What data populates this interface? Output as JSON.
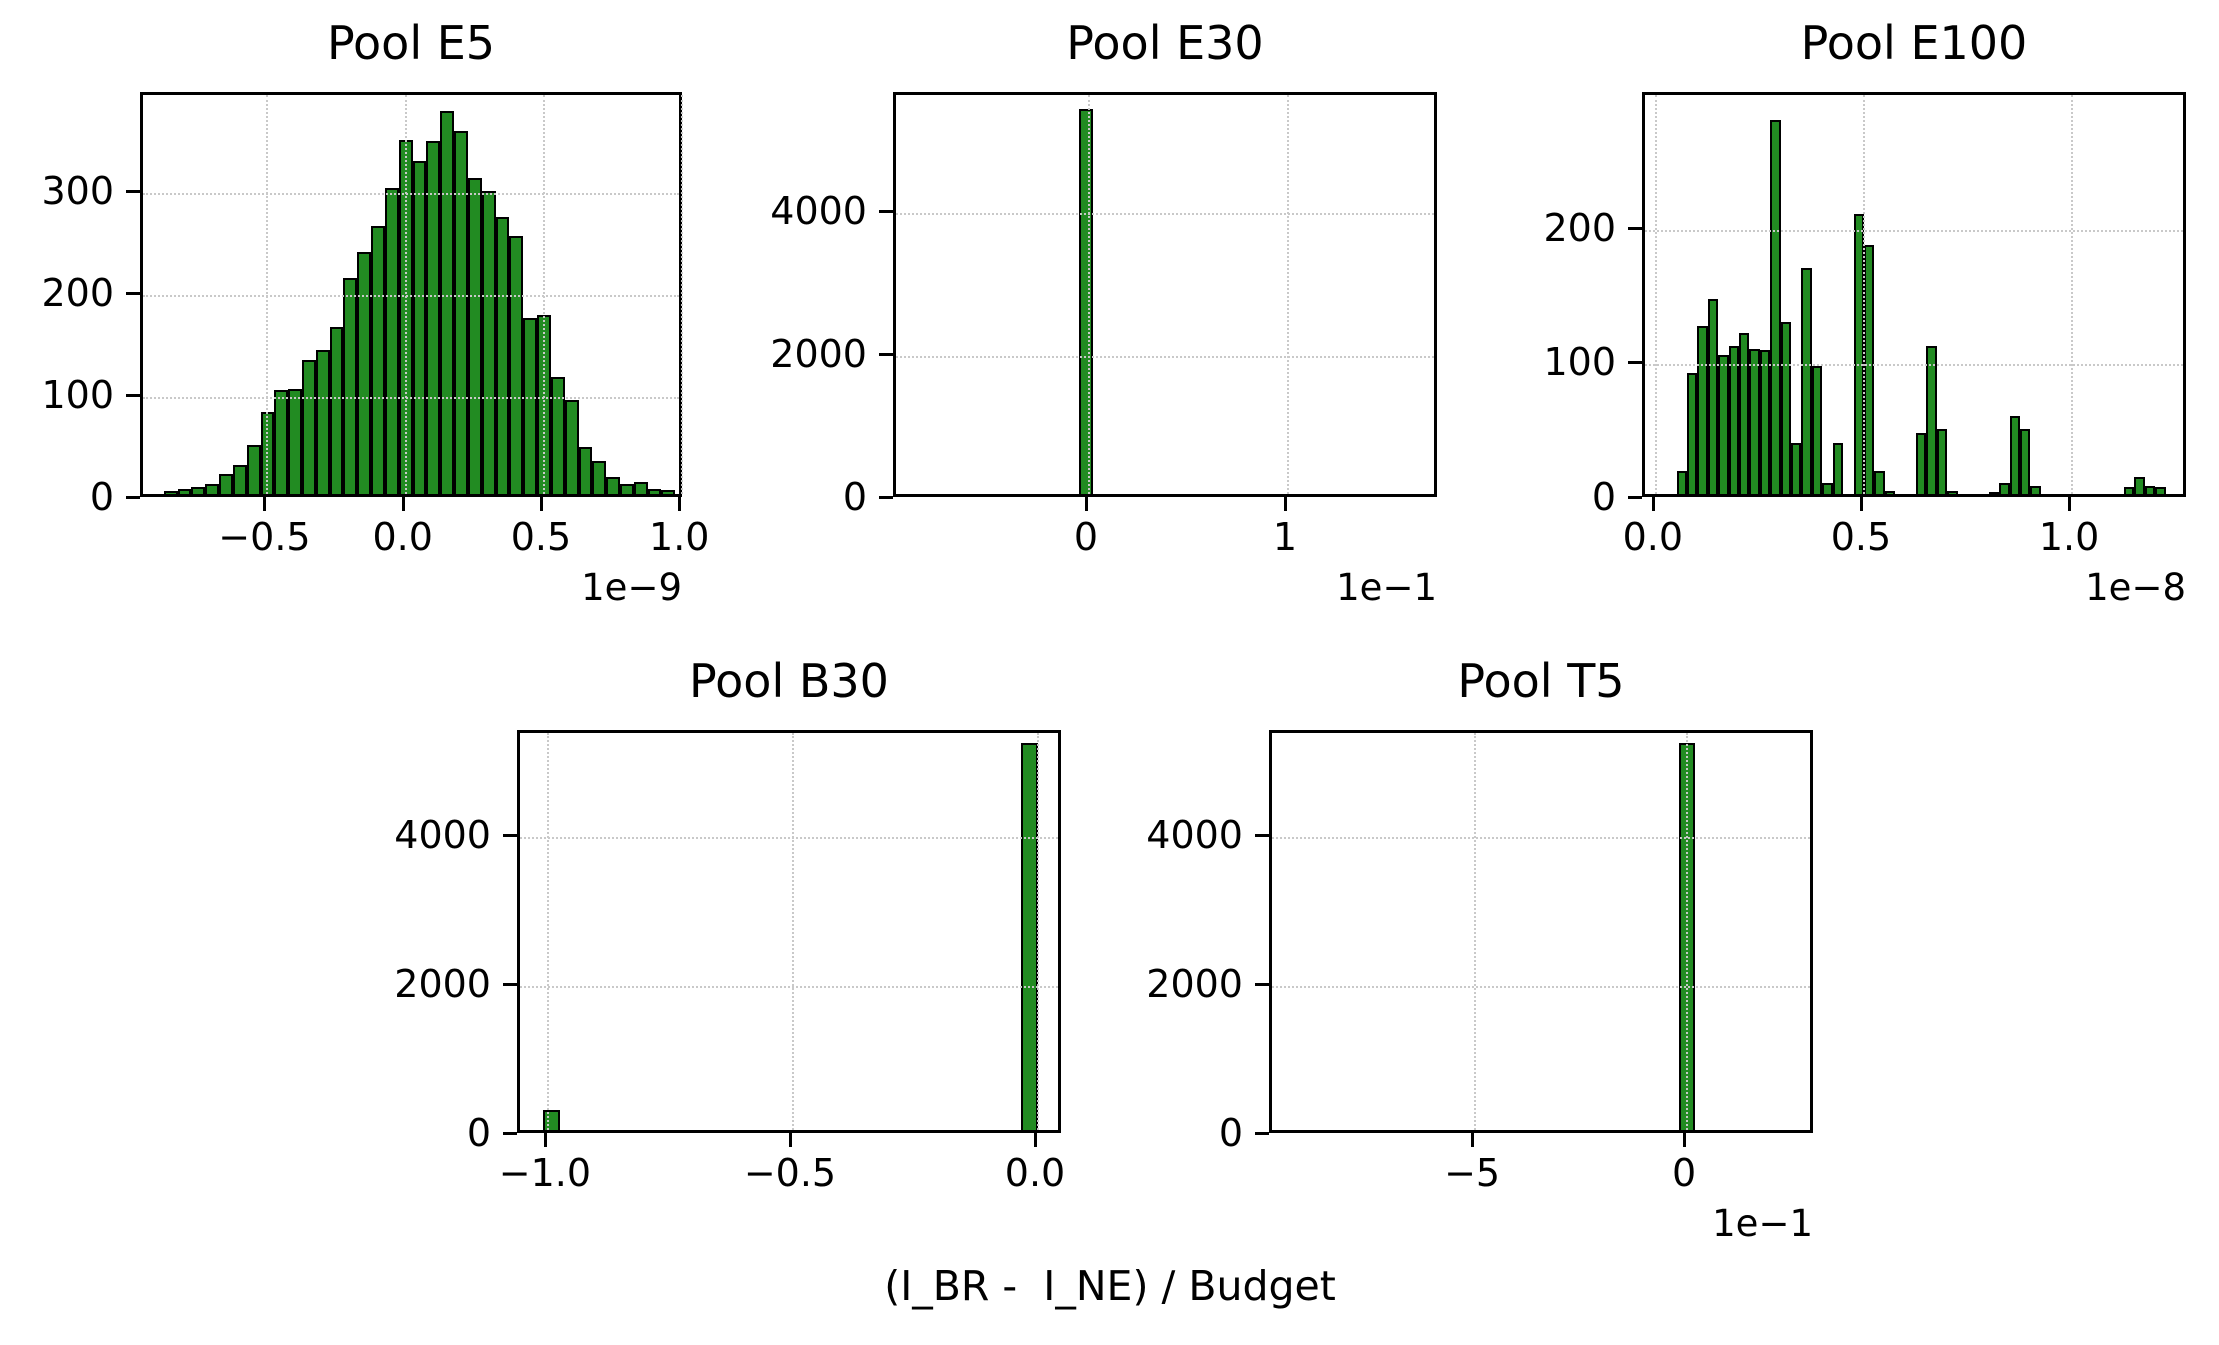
{
  "figure": {
    "background": "#ffffff",
    "bar_fill_color": "#228B22",
    "bar_edge_color": "#000000",
    "grid_color": "#c9c9c9",
    "spine_color": "#000000"
  },
  "chart_data": {
    "type": "bar",
    "subtype": "histogram-grid",
    "title": "",
    "xlabel": "(I_BR -  I_NE) / Budget",
    "ylabel": "",
    "grid": true,
    "legend": false,
    "panels": [
      {
        "title": "Pool E5",
        "x_offset_label": "1e−9",
        "xlim": [
          -0.95,
          1.01
        ],
        "ylim": [
          0,
          397
        ],
        "xticks": [
          {
            "v": -0.5,
            "label": "−0.5"
          },
          {
            "v": 0.0,
            "label": "0.0"
          },
          {
            "v": 0.5,
            "label": "0.5"
          },
          {
            "v": 1.0,
            "label": "1.0"
          }
        ],
        "yticks": [
          {
            "v": 0,
            "label": "0"
          },
          {
            "v": 100,
            "label": "100"
          },
          {
            "v": 200,
            "label": "200"
          },
          {
            "v": 300,
            "label": "300"
          }
        ],
        "bin_start": -0.875,
        "bin_width": 0.05,
        "counts": [
          3,
          5,
          7,
          10,
          20,
          28,
          48,
          80,
          102,
          103,
          131,
          141,
          164,
          212,
          237,
          263,
          300,
          347,
          326,
          346,
          375,
          356,
          310,
          297,
          272,
          253,
          173,
          175,
          115,
          92,
          46,
          32,
          17,
          10,
          12,
          5,
          4
        ]
      },
      {
        "title": "Pool E30",
        "x_offset_label": "1e−1",
        "xlim": [
          -0.97,
          1.764
        ],
        "ylim": [
          0,
          5665
        ],
        "xticks": [
          {
            "v": 0.0,
            "label": "0"
          },
          {
            "v": 1.0,
            "label": "1"
          }
        ],
        "yticks": [
          {
            "v": 0,
            "label": "0"
          },
          {
            "v": 2000,
            "label": "2000"
          },
          {
            "v": 4000,
            "label": "4000"
          }
        ],
        "bin_start": -0.05,
        "bin_width": 0.07,
        "counts": [
          5390
        ]
      },
      {
        "title": "Pool E100",
        "x_offset_label": "1e−8",
        "xlim": [
          -0.026,
          1.281
        ],
        "ylim": [
          0,
          301
        ],
        "xticks": [
          {
            "v": 0.0,
            "label": "0.0"
          },
          {
            "v": 0.5,
            "label": "0.5"
          },
          {
            "v": 1.0,
            "label": "1.0"
          }
        ],
        "yticks": [
          {
            "v": 0,
            "label": "0"
          },
          {
            "v": 100,
            "label": "100"
          },
          {
            "v": 200,
            "label": "200"
          }
        ],
        "bin_start": 0.05,
        "bin_width": 0.025,
        "counts": [
          17,
          90,
          125,
          145,
          103,
          110,
          120,
          108,
          107,
          278,
          128,
          38,
          168,
          95,
          8,
          38,
          0,
          208,
          185,
          17,
          2,
          0,
          0,
          45,
          110,
          48,
          2,
          0,
          0,
          0,
          1,
          8,
          58,
          48,
          6,
          0,
          0,
          0,
          0,
          0,
          0,
          0,
          0,
          5,
          13,
          6,
          5
        ]
      },
      {
        "title": "Pool B30",
        "x_offset_label": "",
        "xlim": [
          -1.057,
          0.053
        ],
        "ylim": [
          0,
          5410
        ],
        "xticks": [
          {
            "v": -1.0,
            "label": "−1.0"
          },
          {
            "v": -0.5,
            "label": "−0.5"
          },
          {
            "v": 0.0,
            "label": "0.0"
          }
        ],
        "yticks": [
          {
            "v": 0,
            "label": "0"
          },
          {
            "v": 2000,
            "label": "2000"
          },
          {
            "v": 4000,
            "label": "4000"
          }
        ],
        "bars": [
          {
            "x0": -1.01,
            "x1": -0.975,
            "count": 270
          },
          {
            "x0": -0.035,
            "x1": 0.0,
            "count": 5200
          }
        ]
      },
      {
        "title": "Pool T5",
        "x_offset_label": "1e−1",
        "xlim": [
          -9.79,
          3.04
        ],
        "ylim": [
          0,
          5410
        ],
        "xticks": [
          {
            "v": -5.0,
            "label": "−5"
          },
          {
            "v": 0.0,
            "label": "0"
          }
        ],
        "yticks": [
          {
            "v": 0,
            "label": "0"
          },
          {
            "v": 2000,
            "label": "2000"
          },
          {
            "v": 4000,
            "label": "4000"
          }
        ],
        "bars": [
          {
            "x0": -0.19,
            "x1": 0.19,
            "count": 5200
          }
        ]
      }
    ]
  }
}
